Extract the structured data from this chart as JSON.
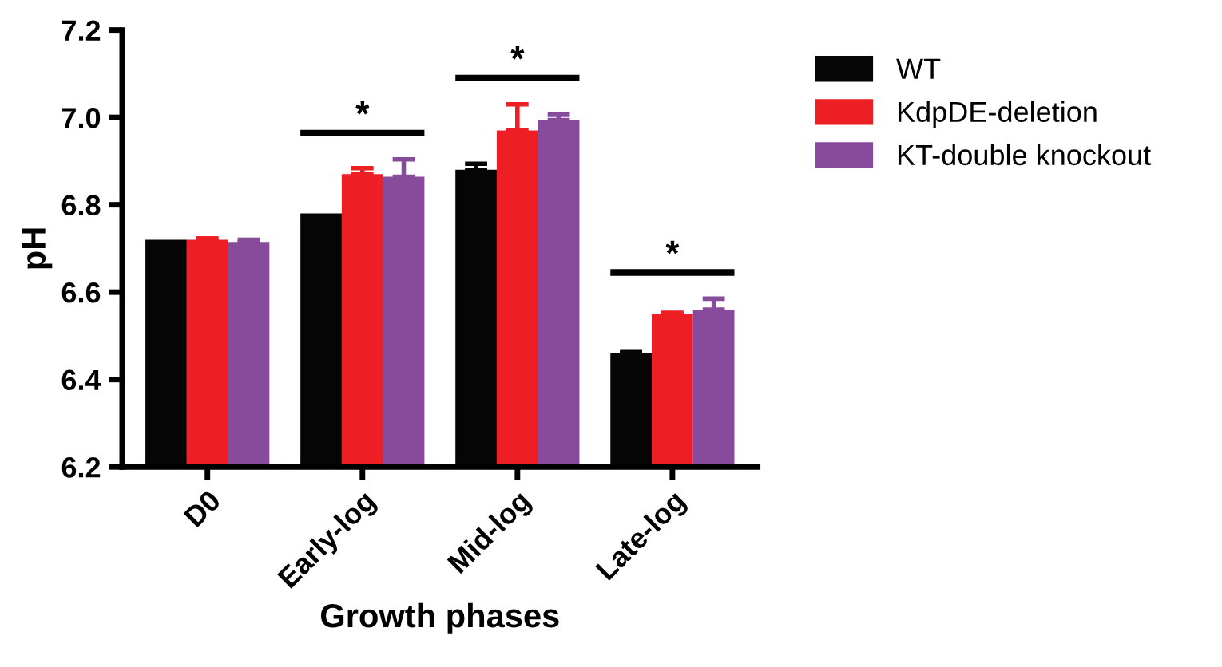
{
  "chart_data": {
    "type": "bar",
    "xlabel": "Growth phases",
    "ylabel": "pH",
    "categories": [
      "D0",
      "Early-log",
      "Mid-log",
      "Late-log"
    ],
    "series": [
      {
        "name": "WT",
        "color": "#050505",
        "values": [
          6.72,
          6.78,
          6.88,
          6.46
        ],
        "errors": [
          null,
          null,
          0.014,
          0.003
        ]
      },
      {
        "name": "KdpDE-deletion",
        "color": "#ee1f24",
        "values": [
          6.72,
          6.87,
          6.97,
          6.55
        ],
        "errors": [
          0.003,
          0.014,
          0.06,
          0.003
        ]
      },
      {
        "name": "KT-double knockout",
        "color": "#884b9c",
        "values": [
          6.715,
          6.864,
          6.994,
          6.56
        ],
        "errors": [
          0.005,
          0.04,
          0.012,
          0.025
        ]
      }
    ],
    "annotations": [
      "*",
      "*",
      "*"
    ],
    "ylim": [
      6.2,
      7.2
    ],
    "yticks": [
      6.2,
      6.4,
      6.6,
      6.8,
      {
        "value": 7.0,
        "label": "7.0"
      },
      7.2
    ],
    "grid": false,
    "legend": "top right"
  }
}
